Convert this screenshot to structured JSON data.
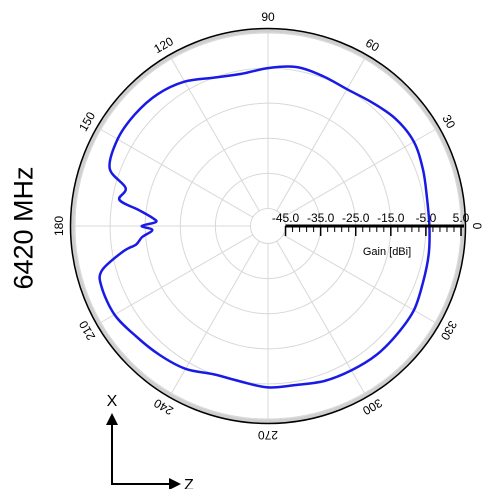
{
  "frequency_label": "6420 MHz",
  "axis_glyphs": {
    "x_axis": "X",
    "z_axis": "Z"
  },
  "chart_data": {
    "type": "polar-line",
    "radial_axis": {
      "label": "Gain [dBi]",
      "range": [
        -50,
        5
      ],
      "tick_values": [
        -45,
        -35,
        -25,
        -15,
        -5,
        5
      ],
      "tick_labels": [
        "-45.0",
        "-35.0",
        "-25.0",
        "-15.0",
        "-5.0",
        "5.0"
      ]
    },
    "angular_axis": {
      "unit": "degrees",
      "tick_values": [
        0,
        30,
        60,
        90,
        120,
        150,
        180,
        210,
        240,
        270,
        300,
        330
      ],
      "tick_labels": [
        "0",
        "30",
        "60",
        "90",
        "120",
        "150",
        "180",
        "210",
        "240",
        "270",
        "300",
        "330"
      ],
      "grid": true
    },
    "series": [
      {
        "color": "#1a1ae6",
        "angle_deg": [
          0,
          10,
          20,
          30,
          40,
          50,
          60,
          70,
          80,
          90,
          100,
          110,
          120,
          130,
          140,
          150,
          160,
          165,
          170,
          173,
          176,
          178,
          180,
          182,
          185,
          188,
          190,
          195,
          200,
          210,
          220,
          230,
          240,
          250,
          260,
          270,
          280,
          290,
          300,
          310,
          320,
          330,
          340,
          350
        ],
        "gain_dbi": [
          -4,
          -4,
          -3,
          -2,
          -2.5,
          -4,
          -5,
          -4.5,
          -4,
          -5,
          -6,
          -5,
          -2.5,
          -1,
          -0.5,
          -0.5,
          -2,
          -8,
          -7,
          -13,
          -17,
          -18,
          -14,
          -17,
          -14,
          -12,
          -8,
          -1,
          0.5,
          0.5,
          -1,
          -2,
          -3,
          -5,
          -5,
          -4,
          -4,
          -3,
          -2.5,
          -2,
          -2,
          -2,
          -3,
          -3.5
        ]
      }
    ]
  }
}
